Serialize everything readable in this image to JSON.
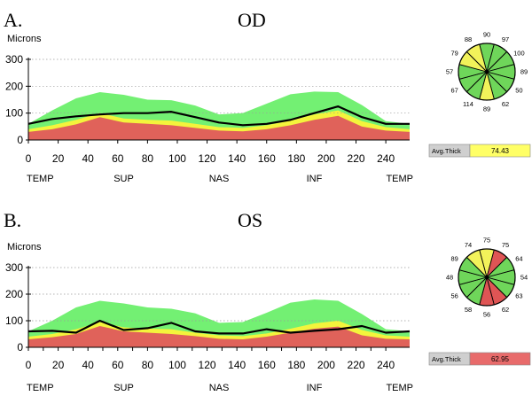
{
  "colors": {
    "normal_band": "#73f073",
    "borderline_band": "#f4f43c",
    "abnormal_band": "#e0625a",
    "measured_line": "#000000",
    "grid": "#9a9a9a",
    "avg_label_bg": "#cfcfcf",
    "avg_value_yellow": "#ffff66",
    "avg_value_red": "#e86b6b"
  },
  "panels": [
    {
      "panel_label": "A.",
      "eye_label": "OD",
      "avg_label": "Avg.Thick",
      "avg_value": "74.43",
      "avg_status": "yellow",
      "clock": {
        "values": [
          "90",
          "97",
          "100",
          "89",
          "50",
          "62",
          "89",
          "114",
          "67",
          "57",
          "79",
          "88"
        ],
        "statuses": [
          "green",
          "green",
          "green",
          "green",
          "green",
          "green",
          "yellow",
          "green",
          "green",
          "green",
          "yellow",
          "yellow"
        ]
      }
    },
    {
      "panel_label": "B.",
      "eye_label": "OS",
      "avg_label": "Avg.Thick",
      "avg_value": "62.95",
      "avg_status": "red",
      "clock": {
        "values": [
          "75",
          "75",
          "64",
          "54",
          "63",
          "62",
          "56",
          "58",
          "56",
          "48",
          "89",
          "74"
        ],
        "statuses": [
          "yellow",
          "red",
          "green",
          "green",
          "green",
          "red",
          "red",
          "green",
          "green",
          "green",
          "green",
          "yellow"
        ]
      }
    }
  ],
  "chart_data": [
    {
      "type": "area",
      "title": "",
      "ylabel": "Microns",
      "xlim": [
        0,
        256
      ],
      "ylim": [
        0,
        300
      ],
      "yticks": [
        0,
        100,
        200,
        300
      ],
      "xticks": [
        0,
        20,
        40,
        60,
        80,
        100,
        120,
        140,
        160,
        180,
        200,
        220,
        240
      ],
      "region_labels": [
        "TEMP",
        "SUP",
        "NAS",
        "INF",
        "TEMP"
      ],
      "grid": "horizontal dotted",
      "x": [
        0,
        16,
        32,
        48,
        64,
        80,
        96,
        112,
        128,
        144,
        160,
        176,
        192,
        208,
        224,
        240,
        256
      ],
      "series": [
        {
          "band": "abnormal",
          "values": [
            30,
            40,
            58,
            85,
            65,
            60,
            55,
            45,
            35,
            32,
            40,
            55,
            75,
            90,
            50,
            35,
            30
          ]
        },
        {
          "band": "borderline",
          "values": [
            40,
            55,
            75,
            100,
            80,
            75,
            72,
            60,
            48,
            45,
            55,
            72,
            95,
            110,
            70,
            48,
            40
          ]
        },
        {
          "band": "normal",
          "values": [
            60,
            110,
            155,
            178,
            168,
            150,
            148,
            128,
            95,
            100,
            135,
            170,
            180,
            178,
            130,
            70,
            60
          ]
        },
        {
          "band": "measured",
          "values": [
            60,
            78,
            88,
            95,
            100,
            100,
            105,
            85,
            65,
            55,
            60,
            75,
            100,
            125,
            85,
            60,
            60
          ]
        }
      ]
    },
    {
      "type": "area",
      "title": "",
      "ylabel": "Microns",
      "xlim": [
        0,
        256
      ],
      "ylim": [
        0,
        300
      ],
      "yticks": [
        0,
        100,
        200,
        300
      ],
      "xticks": [
        0,
        10,
        20,
        30,
        40,
        50,
        60,
        70,
        80,
        90,
        100,
        110,
        120,
        130,
        140,
        150,
        160,
        170,
        180,
        190,
        200,
        210,
        220,
        230,
        240
      ],
      "xtick_labels": [
        0,
        20,
        40,
        60,
        80,
        100,
        120,
        140,
        160,
        180,
        200,
        220,
        240
      ],
      "region_labels": [
        "TEMP",
        "SUP",
        "NAS",
        "INF",
        "TEMP"
      ],
      "grid": "horizontal dotted",
      "x": [
        0,
        16,
        32,
        48,
        64,
        80,
        96,
        112,
        128,
        144,
        160,
        176,
        192,
        208,
        224,
        240,
        256
      ],
      "series": [
        {
          "band": "abnormal",
          "values": [
            30,
            38,
            50,
            80,
            60,
            55,
            50,
            42,
            32,
            30,
            40,
            55,
            70,
            78,
            45,
            32,
            30
          ]
        },
        {
          "band": "borderline",
          "values": [
            40,
            50,
            68,
            95,
            75,
            70,
            68,
            55,
            45,
            42,
            52,
            70,
            90,
            100,
            65,
            45,
            40
          ]
        },
        {
          "band": "normal",
          "values": [
            60,
            100,
            150,
            175,
            165,
            150,
            145,
            128,
            92,
            95,
            130,
            168,
            180,
            175,
            125,
            68,
            60
          ]
        },
        {
          "band": "measured",
          "values": [
            60,
            62,
            55,
            100,
            65,
            72,
            92,
            60,
            52,
            52,
            68,
            55,
            62,
            68,
            80,
            55,
            60
          ]
        }
      ]
    }
  ]
}
